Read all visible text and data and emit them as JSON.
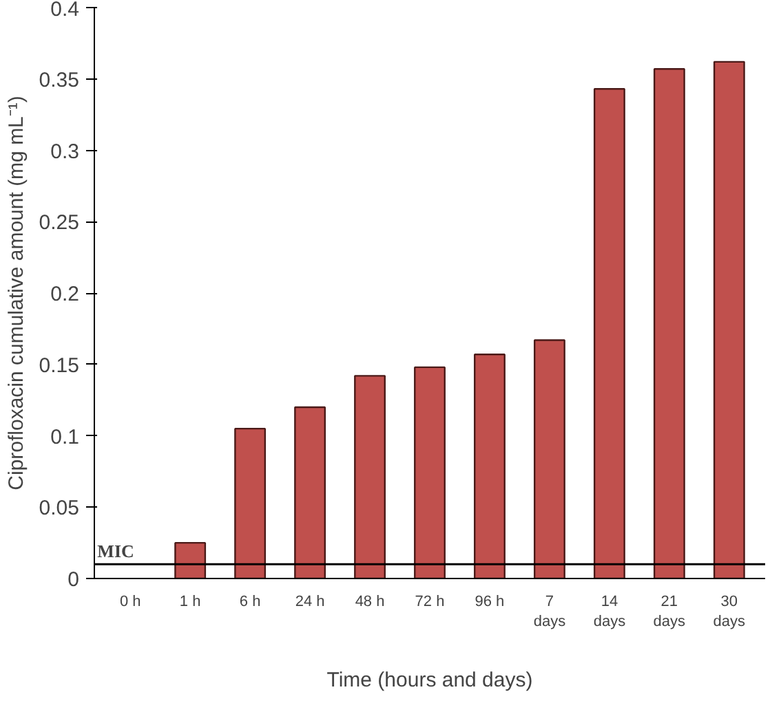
{
  "chart_data": {
    "type": "bar",
    "xlabel": "Time (hours and days)",
    "ylabel": "Ciprofloxacin cumulative amount (mg mL⁻¹)",
    "categories": [
      "0 h",
      "1 h",
      "6 h",
      "24 h",
      "48 h",
      "72 h",
      "96 h",
      "7 days",
      "14 days",
      "21 days",
      "30 days"
    ],
    "values": [
      null,
      0.025,
      0.105,
      0.12,
      0.142,
      0.148,
      0.157,
      0.167,
      0.343,
      0.357,
      0.362
    ],
    "color": "#c0504d",
    "ylim": [
      0,
      0.4
    ],
    "yticks": [
      0,
      0.05,
      0.1,
      0.15,
      0.2,
      0.25,
      0.3,
      0.35,
      0.4
    ],
    "ref_lines": [
      {
        "axis": "y",
        "value": 0.01,
        "label": "MIC",
        "color": "#000000"
      }
    ],
    "grid": false
  }
}
